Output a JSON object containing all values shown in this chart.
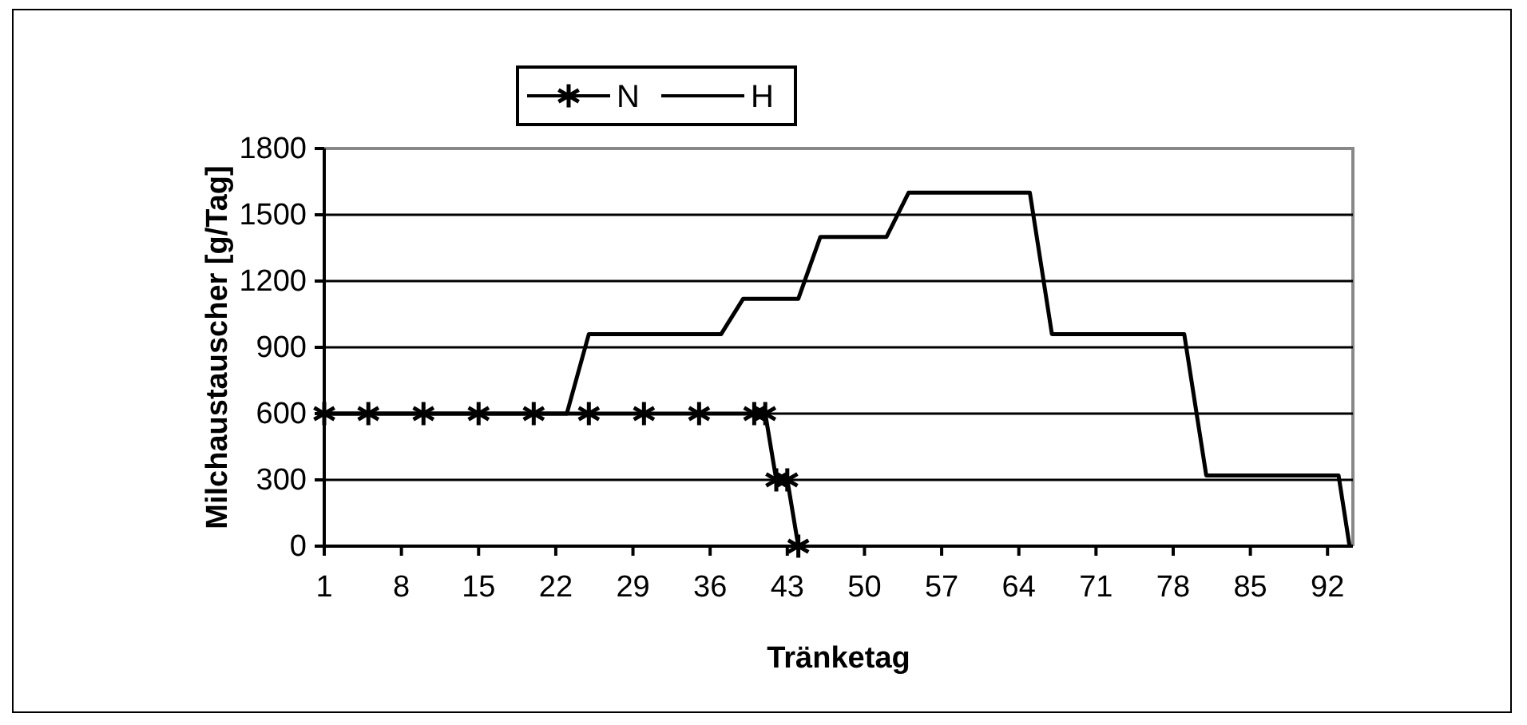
{
  "chart_data": {
    "type": "line",
    "xlabel": "Tränketag",
    "ylabel": "Milchaustauscher [g/Tag]",
    "xlim": [
      1,
      94.3
    ],
    "xticks": [
      1,
      8,
      15,
      22,
      29,
      36,
      43,
      50,
      57,
      64,
      71,
      78,
      85,
      92
    ],
    "ylim": [
      0,
      1800
    ],
    "yticks": [
      0,
      300,
      600,
      900,
      1200,
      1500,
      1800
    ],
    "grid": "y",
    "legend": "top",
    "series": [
      {
        "name": "N",
        "color": "#000000",
        "marker": "cross",
        "x": [
          1,
          5,
          10,
          15,
          20,
          25,
          30,
          35,
          40,
          41,
          42,
          43,
          44
        ],
        "values": [
          600,
          600,
          600,
          600,
          600,
          600,
          600,
          600,
          600,
          600,
          300,
          300,
          0
        ]
      },
      {
        "name": "H",
        "color": "#000000",
        "marker": "none",
        "x": [
          1,
          23,
          25,
          37,
          39,
          44,
          46,
          52,
          54,
          65,
          67,
          79,
          81,
          93,
          94
        ],
        "values": [
          600,
          600,
          960,
          960,
          1120,
          1120,
          1400,
          1400,
          1600,
          1600,
          960,
          960,
          320,
          320,
          0
        ]
      }
    ]
  }
}
